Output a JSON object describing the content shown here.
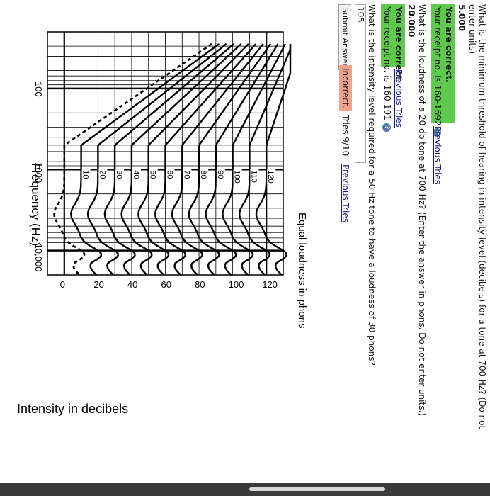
{
  "question1": {
    "text": "What is the minimum threshold of hearing in intensity level (decibels) for a tone at 700 Hz? (Do not",
    "text_cont": "enter units)",
    "answer": "5.000",
    "result": "You are correct.",
    "receipt": "Your receipt no. is 160-1692",
    "previous_tries": "Previous Tries"
  },
  "question2": {
    "text": "What is the loudness of a 20 db tone at 700 Hz? (Enter the answer in phons. Do not enter units.)",
    "answer": "20.000",
    "result": "You are correct.",
    "receipt": "Your receipt no. is 160-191",
    "previous_tries": "Previous Tries"
  },
  "question3": {
    "text": "What is the intensity level required for a 50 Hz tone to have a loudness of 30 phons?",
    "input_value": "105",
    "submit_label": "Submit Answer",
    "result": "Incorrect.",
    "tries": "Tries 9/10",
    "previous_tries": "Previous Tries"
  },
  "help_icon": "?",
  "chart_data": {
    "type": "line",
    "title": "Equal loudness in phons",
    "xlabel": "Frequency (Hz)",
    "ylabel": "Intensity in decibels",
    "x_ticks": [
      "100",
      "1000",
      "10,000"
    ],
    "y_ticks": [
      "0",
      "20",
      "40",
      "60",
      "80",
      "100",
      "120"
    ],
    "ylim": [
      0,
      120
    ],
    "x_scale": "log",
    "grid": true,
    "series": [
      {
        "name": "120",
        "label_value": 120
      },
      {
        "name": "110",
        "label_value": 110
      },
      {
        "name": "100",
        "label_value": 100
      },
      {
        "name": "90",
        "label_value": 90
      },
      {
        "name": "80",
        "label_value": 80
      },
      {
        "name": "70",
        "label_value": 70
      },
      {
        "name": "60",
        "label_value": 60
      },
      {
        "name": "50",
        "label_value": 50
      },
      {
        "name": "40",
        "label_value": 40
      },
      {
        "name": "30",
        "label_value": 30
      },
      {
        "name": "20",
        "label_value": 20
      },
      {
        "name": "10",
        "label_value": 10
      }
    ],
    "threshold_curve": "dashed"
  }
}
